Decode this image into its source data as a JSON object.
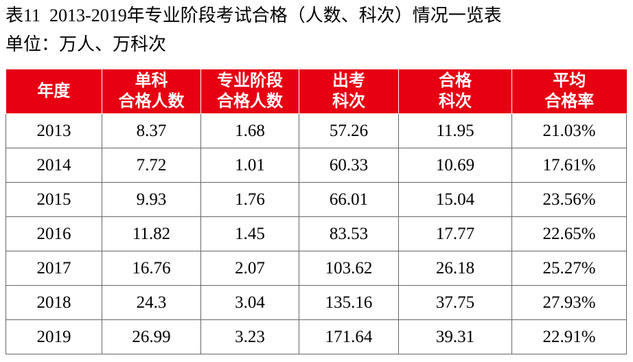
{
  "header": {
    "title": "表11  2013-2019年专业阶段考试合格（人数、科次）情况一览表",
    "unit": "单位：万人、万科次"
  },
  "table": {
    "columns": [
      [
        "年度"
      ],
      [
        "单科",
        "合格人数"
      ],
      [
        "专业阶段",
        "合格人数"
      ],
      [
        "出考",
        "科次"
      ],
      [
        "合格",
        "科次"
      ],
      [
        "平均",
        "合格率"
      ]
    ],
    "rows": [
      [
        "2013",
        "8.37",
        "1.68",
        "57.26",
        "11.95",
        "21.03%"
      ],
      [
        "2014",
        "7.72",
        "1.01",
        "60.33",
        "10.69",
        "17.61%"
      ],
      [
        "2015",
        "9.93",
        "1.76",
        "66.01",
        "15.04",
        "23.56%"
      ],
      [
        "2016",
        "11.82",
        "1.45",
        "83.53",
        "17.77",
        "22.65%"
      ],
      [
        "2017",
        "16.76",
        "2.07",
        "103.62",
        "26.18",
        "25.27%"
      ],
      [
        "2018",
        "24.3",
        "3.04",
        "135.16",
        "37.75",
        "27.93%"
      ],
      [
        "2019",
        "26.99",
        "3.23",
        "171.64",
        "39.31",
        "22.91%"
      ]
    ]
  }
}
